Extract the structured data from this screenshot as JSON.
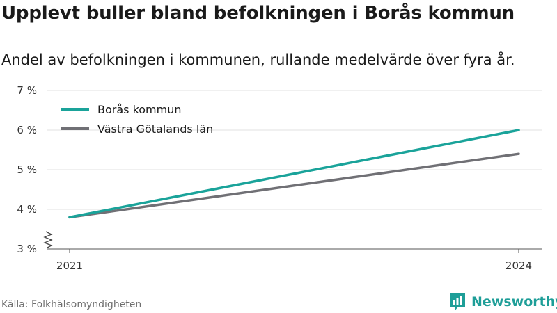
{
  "chart_data": {
    "type": "line",
    "title": "Upplevt buller bland befolkningen i Borås kommun",
    "subtitle": "Andel av befolkningen i kommunen, rullande medelvärde över fyra år.",
    "x": [
      2021,
      2024
    ],
    "x_tick_labels": [
      "2021",
      "2024"
    ],
    "y_ticks": [
      3,
      4,
      5,
      6,
      7
    ],
    "y_tick_labels": [
      "3 %",
      "4 %",
      "5 %",
      "6 %",
      "7 %"
    ],
    "ylim": [
      3,
      7
    ],
    "grid": true,
    "legend_position": "top-left",
    "series": [
      {
        "name": "Borås kommun",
        "values": [
          3.8,
          6.0
        ],
        "color": "#1aa39a"
      },
      {
        "name": "Västra Götalands län",
        "values": [
          3.8,
          5.4
        ],
        "color": "#707075"
      }
    ]
  },
  "source": "Källa: Folkhälsomyndigheten",
  "brand": {
    "name": "Newsworthy",
    "icon": "newsworthy-logo-icon",
    "color": "#1e9e98"
  }
}
